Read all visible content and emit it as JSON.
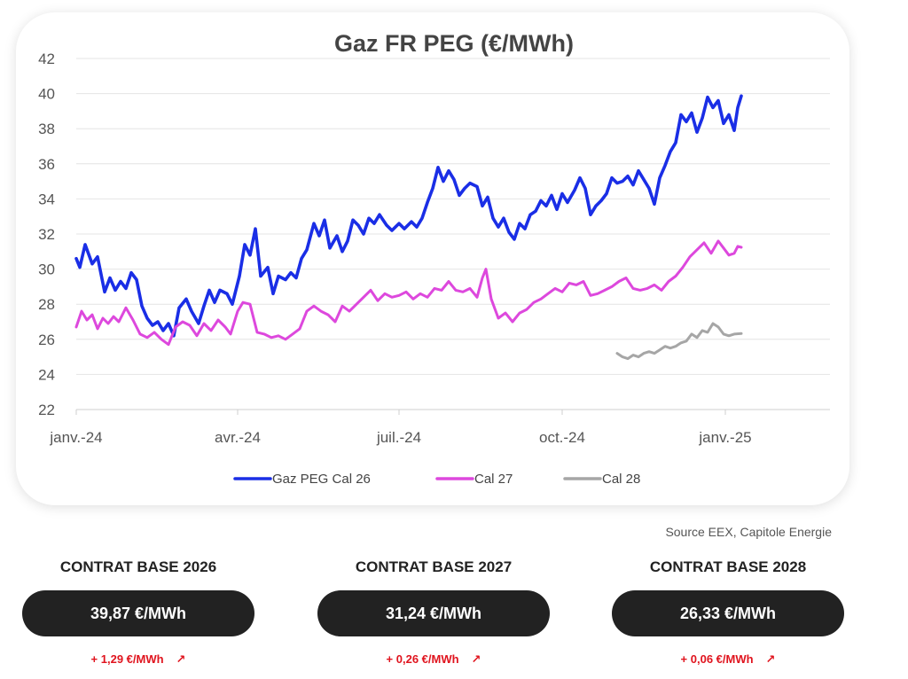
{
  "chart_data": {
    "type": "line",
    "title": "Gaz FR PEG (€/MWh)",
    "xlabel": "",
    "ylabel": "",
    "ylim": [
      22,
      42
    ],
    "yticks": [
      22,
      24,
      26,
      28,
      30,
      32,
      34,
      36,
      38,
      40,
      42
    ],
    "x_tick_labels": [
      {
        "date": "2024-01-01",
        "label": "janv.-24"
      },
      {
        "date": "2024-04-01",
        "label": "avr.-24"
      },
      {
        "date": "2024-07-01",
        "label": "juil.-24"
      },
      {
        "date": "2024-10-01",
        "label": "oct.-24"
      },
      {
        "date": "2025-01-01",
        "label": "janv.-25"
      }
    ],
    "grid": "horizontal",
    "legend_position": "bottom",
    "series": [
      {
        "name": "Gaz PEG Cal 26",
        "color": "#1a2ee6",
        "points": [
          [
            "2024-01-01",
            30.6
          ],
          [
            "2024-01-03",
            30.1
          ],
          [
            "2024-01-06",
            31.4
          ],
          [
            "2024-01-10",
            30.3
          ],
          [
            "2024-01-13",
            30.7
          ],
          [
            "2024-01-17",
            28.7
          ],
          [
            "2024-01-20",
            29.5
          ],
          [
            "2024-01-23",
            28.8
          ],
          [
            "2024-01-26",
            29.3
          ],
          [
            "2024-01-29",
            28.9
          ],
          [
            "2024-02-01",
            29.8
          ],
          [
            "2024-02-04",
            29.4
          ],
          [
            "2024-02-07",
            27.9
          ],
          [
            "2024-02-10",
            27.2
          ],
          [
            "2024-02-13",
            26.8
          ],
          [
            "2024-02-16",
            27.0
          ],
          [
            "2024-02-19",
            26.5
          ],
          [
            "2024-02-22",
            26.9
          ],
          [
            "2024-02-25",
            26.2
          ],
          [
            "2024-02-28",
            27.8
          ],
          [
            "2024-03-03",
            28.3
          ],
          [
            "2024-03-06",
            27.6
          ],
          [
            "2024-03-10",
            26.9
          ],
          [
            "2024-03-13",
            27.9
          ],
          [
            "2024-03-16",
            28.8
          ],
          [
            "2024-03-19",
            28.1
          ],
          [
            "2024-03-22",
            28.8
          ],
          [
            "2024-03-26",
            28.6
          ],
          [
            "2024-03-29",
            28.0
          ],
          [
            "2024-04-02",
            29.6
          ],
          [
            "2024-04-05",
            31.4
          ],
          [
            "2024-04-08",
            30.8
          ],
          [
            "2024-04-11",
            32.3
          ],
          [
            "2024-04-14",
            29.6
          ],
          [
            "2024-04-18",
            30.1
          ],
          [
            "2024-04-21",
            28.6
          ],
          [
            "2024-04-24",
            29.6
          ],
          [
            "2024-04-28",
            29.4
          ],
          [
            "2024-05-01",
            29.8
          ],
          [
            "2024-05-04",
            29.5
          ],
          [
            "2024-05-07",
            30.6
          ],
          [
            "2024-05-10",
            31.1
          ],
          [
            "2024-05-14",
            32.6
          ],
          [
            "2024-05-17",
            31.9
          ],
          [
            "2024-05-20",
            32.8
          ],
          [
            "2024-05-23",
            31.2
          ],
          [
            "2024-05-27",
            31.9
          ],
          [
            "2024-05-30",
            31.0
          ],
          [
            "2024-06-02",
            31.6
          ],
          [
            "2024-06-05",
            32.8
          ],
          [
            "2024-06-08",
            32.5
          ],
          [
            "2024-06-11",
            32.0
          ],
          [
            "2024-06-14",
            32.9
          ],
          [
            "2024-06-17",
            32.6
          ],
          [
            "2024-06-20",
            33.1
          ],
          [
            "2024-06-24",
            32.5
          ],
          [
            "2024-06-27",
            32.2
          ],
          [
            "2024-07-01",
            32.6
          ],
          [
            "2024-07-04",
            32.3
          ],
          [
            "2024-07-08",
            32.7
          ],
          [
            "2024-07-11",
            32.4
          ],
          [
            "2024-07-14",
            32.9
          ],
          [
            "2024-07-17",
            33.8
          ],
          [
            "2024-07-20",
            34.6
          ],
          [
            "2024-07-23",
            35.8
          ],
          [
            "2024-07-26",
            35.0
          ],
          [
            "2024-07-29",
            35.6
          ],
          [
            "2024-08-01",
            35.1
          ],
          [
            "2024-08-04",
            34.2
          ],
          [
            "2024-08-07",
            34.6
          ],
          [
            "2024-08-10",
            34.9
          ],
          [
            "2024-08-14",
            34.7
          ],
          [
            "2024-08-17",
            33.6
          ],
          [
            "2024-08-20",
            34.1
          ],
          [
            "2024-08-23",
            32.9
          ],
          [
            "2024-08-26",
            32.4
          ],
          [
            "2024-08-29",
            32.9
          ],
          [
            "2024-09-01",
            32.1
          ],
          [
            "2024-09-04",
            31.7
          ],
          [
            "2024-09-07",
            32.6
          ],
          [
            "2024-09-10",
            32.3
          ],
          [
            "2024-09-13",
            33.1
          ],
          [
            "2024-09-16",
            33.3
          ],
          [
            "2024-09-19",
            33.9
          ],
          [
            "2024-09-22",
            33.6
          ],
          [
            "2024-09-25",
            34.2
          ],
          [
            "2024-09-28",
            33.4
          ],
          [
            "2024-10-01",
            34.3
          ],
          [
            "2024-10-04",
            33.8
          ],
          [
            "2024-10-08",
            34.5
          ],
          [
            "2024-10-11",
            35.2
          ],
          [
            "2024-10-14",
            34.6
          ],
          [
            "2024-10-17",
            33.1
          ],
          [
            "2024-10-20",
            33.6
          ],
          [
            "2024-10-23",
            33.9
          ],
          [
            "2024-10-26",
            34.3
          ],
          [
            "2024-10-29",
            35.2
          ],
          [
            "2024-11-01",
            34.9
          ],
          [
            "2024-11-04",
            35.0
          ],
          [
            "2024-11-07",
            35.3
          ],
          [
            "2024-11-10",
            34.8
          ],
          [
            "2024-11-13",
            35.6
          ],
          [
            "2024-11-16",
            35.1
          ],
          [
            "2024-11-19",
            34.6
          ],
          [
            "2024-11-22",
            33.7
          ],
          [
            "2024-11-25",
            35.2
          ],
          [
            "2024-11-28",
            35.9
          ],
          [
            "2024-12-01",
            36.7
          ],
          [
            "2024-12-04",
            37.2
          ],
          [
            "2024-12-07",
            38.8
          ],
          [
            "2024-12-10",
            38.4
          ],
          [
            "2024-12-13",
            38.9
          ],
          [
            "2024-12-16",
            37.8
          ],
          [
            "2024-12-19",
            38.6
          ],
          [
            "2024-12-22",
            39.8
          ],
          [
            "2024-12-25",
            39.2
          ],
          [
            "2024-12-28",
            39.6
          ],
          [
            "2024-12-31",
            38.3
          ],
          [
            "2025-01-03",
            38.8
          ],
          [
            "2025-01-06",
            37.9
          ],
          [
            "2025-01-08",
            39.2
          ],
          [
            "2025-01-10",
            39.87
          ]
        ]
      },
      {
        "name": "Cal 27",
        "color": "#dd48dd",
        "points": [
          [
            "2024-01-01",
            26.7
          ],
          [
            "2024-01-04",
            27.6
          ],
          [
            "2024-01-07",
            27.1
          ],
          [
            "2024-01-10",
            27.4
          ],
          [
            "2024-01-13",
            26.6
          ],
          [
            "2024-01-16",
            27.2
          ],
          [
            "2024-01-19",
            26.9
          ],
          [
            "2024-01-22",
            27.3
          ],
          [
            "2024-01-25",
            27.0
          ],
          [
            "2024-01-29",
            27.8
          ],
          [
            "2024-02-02",
            27.1
          ],
          [
            "2024-02-06",
            26.3
          ],
          [
            "2024-02-10",
            26.1
          ],
          [
            "2024-02-14",
            26.4
          ],
          [
            "2024-02-18",
            26.0
          ],
          [
            "2024-02-22",
            25.7
          ],
          [
            "2024-02-26",
            26.7
          ],
          [
            "2024-03-01",
            27.0
          ],
          [
            "2024-03-05",
            26.8
          ],
          [
            "2024-03-09",
            26.2
          ],
          [
            "2024-03-13",
            26.9
          ],
          [
            "2024-03-17",
            26.5
          ],
          [
            "2024-03-21",
            27.1
          ],
          [
            "2024-03-25",
            26.7
          ],
          [
            "2024-03-28",
            26.3
          ],
          [
            "2024-04-01",
            27.6
          ],
          [
            "2024-04-04",
            28.1
          ],
          [
            "2024-04-08",
            28.0
          ],
          [
            "2024-04-12",
            26.4
          ],
          [
            "2024-04-16",
            26.3
          ],
          [
            "2024-04-20",
            26.1
          ],
          [
            "2024-04-24",
            26.2
          ],
          [
            "2024-04-28",
            26.0
          ],
          [
            "2024-05-02",
            26.3
          ],
          [
            "2024-05-06",
            26.6
          ],
          [
            "2024-05-10",
            27.6
          ],
          [
            "2024-05-14",
            27.9
          ],
          [
            "2024-05-18",
            27.6
          ],
          [
            "2024-05-22",
            27.4
          ],
          [
            "2024-05-26",
            27.0
          ],
          [
            "2024-05-30",
            27.9
          ],
          [
            "2024-06-03",
            27.6
          ],
          [
            "2024-06-07",
            28.0
          ],
          [
            "2024-06-11",
            28.4
          ],
          [
            "2024-06-15",
            28.8
          ],
          [
            "2024-06-19",
            28.2
          ],
          [
            "2024-06-23",
            28.6
          ],
          [
            "2024-06-27",
            28.4
          ],
          [
            "2024-07-01",
            28.5
          ],
          [
            "2024-07-05",
            28.7
          ],
          [
            "2024-07-09",
            28.3
          ],
          [
            "2024-07-13",
            28.6
          ],
          [
            "2024-07-17",
            28.4
          ],
          [
            "2024-07-21",
            28.9
          ],
          [
            "2024-07-25",
            28.8
          ],
          [
            "2024-07-29",
            29.3
          ],
          [
            "2024-08-02",
            28.8
          ],
          [
            "2024-08-06",
            28.7
          ],
          [
            "2024-08-10",
            28.9
          ],
          [
            "2024-08-14",
            28.4
          ],
          [
            "2024-08-17",
            29.5
          ],
          [
            "2024-08-19",
            30.0
          ],
          [
            "2024-08-22",
            28.3
          ],
          [
            "2024-08-26",
            27.2
          ],
          [
            "2024-08-30",
            27.5
          ],
          [
            "2024-09-03",
            27.0
          ],
          [
            "2024-09-07",
            27.5
          ],
          [
            "2024-09-11",
            27.7
          ],
          [
            "2024-09-15",
            28.1
          ],
          [
            "2024-09-19",
            28.3
          ],
          [
            "2024-09-23",
            28.6
          ],
          [
            "2024-09-27",
            28.9
          ],
          [
            "2024-10-01",
            28.7
          ],
          [
            "2024-10-05",
            29.2
          ],
          [
            "2024-10-09",
            29.1
          ],
          [
            "2024-10-13",
            29.3
          ],
          [
            "2024-10-17",
            28.5
          ],
          [
            "2024-10-21",
            28.6
          ],
          [
            "2024-10-25",
            28.8
          ],
          [
            "2024-10-29",
            29.0
          ],
          [
            "2024-11-02",
            29.3
          ],
          [
            "2024-11-06",
            29.5
          ],
          [
            "2024-11-10",
            28.9
          ],
          [
            "2024-11-14",
            28.8
          ],
          [
            "2024-11-18",
            28.9
          ],
          [
            "2024-11-22",
            29.1
          ],
          [
            "2024-11-26",
            28.8
          ],
          [
            "2024-11-30",
            29.3
          ],
          [
            "2024-12-04",
            29.6
          ],
          [
            "2024-12-08",
            30.1
          ],
          [
            "2024-12-12",
            30.7
          ],
          [
            "2024-12-16",
            31.1
          ],
          [
            "2024-12-20",
            31.5
          ],
          [
            "2024-12-24",
            30.9
          ],
          [
            "2024-12-28",
            31.6
          ],
          [
            "2024-12-31",
            31.2
          ],
          [
            "2025-01-03",
            30.8
          ],
          [
            "2025-01-06",
            30.9
          ],
          [
            "2025-01-08",
            31.3
          ],
          [
            "2025-01-10",
            31.24
          ]
        ]
      },
      {
        "name": "Cal 28",
        "color": "#a6a6a6",
        "points": [
          [
            "2024-11-01",
            25.2
          ],
          [
            "2024-11-04",
            25.0
          ],
          [
            "2024-11-07",
            24.9
          ],
          [
            "2024-11-10",
            25.1
          ],
          [
            "2024-11-13",
            25.0
          ],
          [
            "2024-11-16",
            25.2
          ],
          [
            "2024-11-19",
            25.3
          ],
          [
            "2024-11-22",
            25.2
          ],
          [
            "2024-11-25",
            25.4
          ],
          [
            "2024-11-28",
            25.6
          ],
          [
            "2024-12-01",
            25.5
          ],
          [
            "2024-12-04",
            25.6
          ],
          [
            "2024-12-07",
            25.8
          ],
          [
            "2024-12-10",
            25.9
          ],
          [
            "2024-12-13",
            26.3
          ],
          [
            "2024-12-16",
            26.1
          ],
          [
            "2024-12-19",
            26.5
          ],
          [
            "2024-12-22",
            26.4
          ],
          [
            "2024-12-25",
            26.9
          ],
          [
            "2024-12-28",
            26.7
          ],
          [
            "2024-12-31",
            26.3
          ],
          [
            "2025-01-03",
            26.2
          ],
          [
            "2025-01-06",
            26.3
          ],
          [
            "2025-01-10",
            26.33
          ]
        ]
      }
    ]
  },
  "source": "Source EEX, Capitole Energie",
  "contracts": [
    {
      "title": "CONTRAT BASE 2026",
      "price": "39,87 €/MWh",
      "change": "+ 1,29 €/MWh",
      "arrow": "↗"
    },
    {
      "title": "CONTRAT BASE 2027",
      "price": "31,24 €/MWh",
      "change": "+ 0,26 €/MWh",
      "arrow": "↗"
    },
    {
      "title": "CONTRAT BASE 2028",
      "price": "26,33 €/MWh",
      "change": "+ 0,06 €/MWh",
      "arrow": "↗"
    }
  ],
  "colors": {
    "change": "#e0141e",
    "pill": "#222222"
  }
}
